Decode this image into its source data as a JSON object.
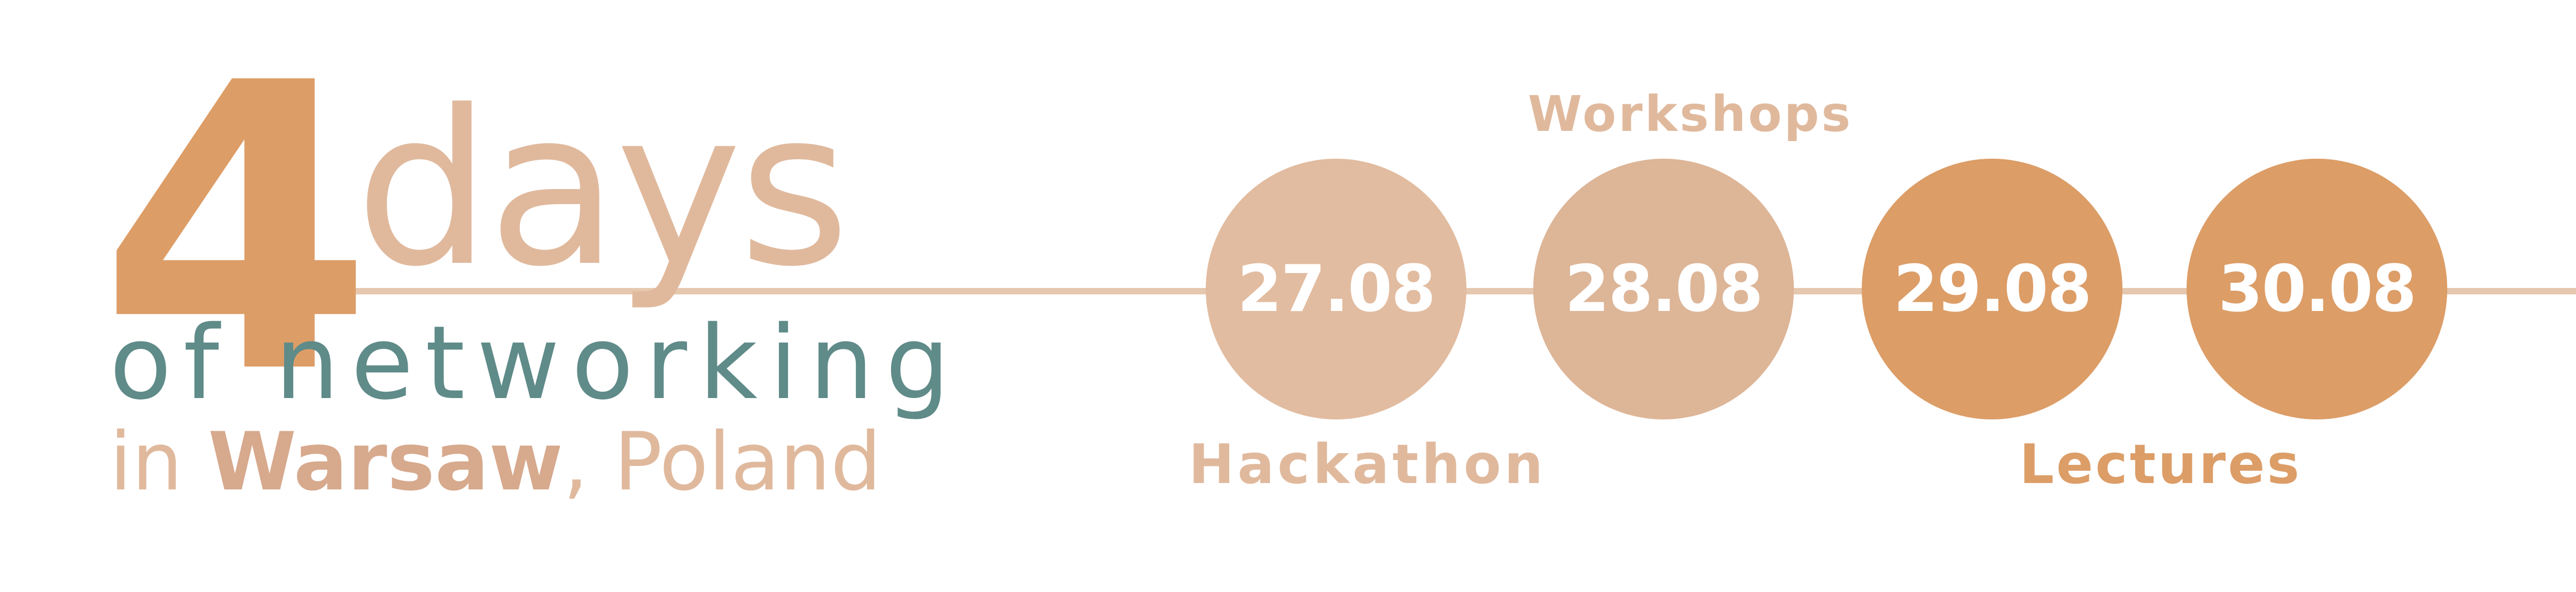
{
  "banner": {
    "headline_number": "4",
    "headline_word": "days",
    "subline": "of networking",
    "location_prefix": "in ",
    "location_city": "Warsaw",
    "location_suffix": ", Poland"
  },
  "timeline": {
    "dates": [
      {
        "date": "27.08"
      },
      {
        "date": "28.08"
      },
      {
        "date": "29.08"
      },
      {
        "date": "30.08"
      }
    ],
    "labels": {
      "workshops": "Workshops",
      "hackathon": "Hackathon",
      "lectures": "Lectures"
    }
  },
  "colors": {
    "accent_orange": "#dc9d67",
    "accent_light": "#e0b99d",
    "accent_teal": "#5f8b89",
    "background": "#ffffff"
  }
}
